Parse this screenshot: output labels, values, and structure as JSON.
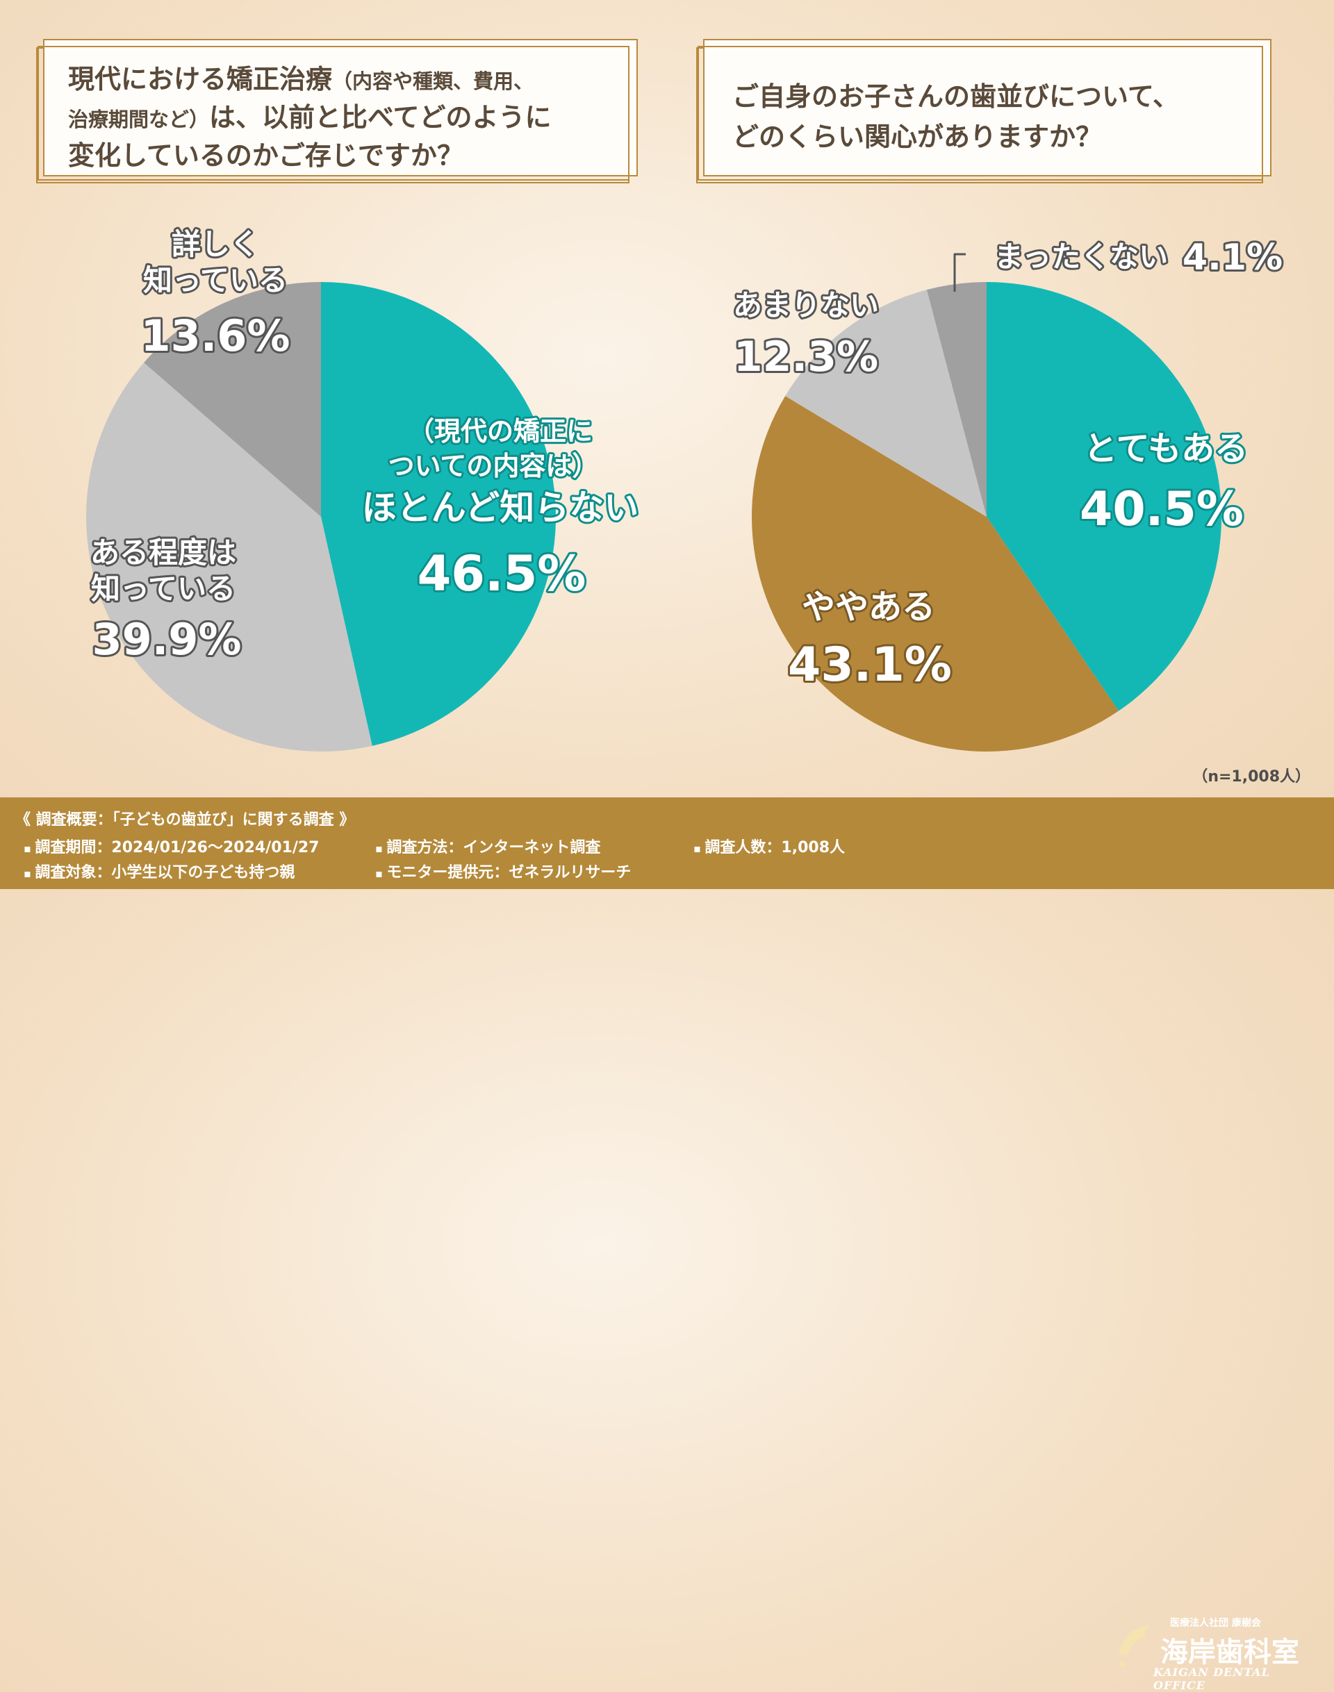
{
  "chart_data": [
    {
      "type": "pie",
      "title": "現代における矯正治療（内容や種類、費用、治療期間など）は、以前と比べてどのように変化しているのかご存じですか？",
      "slices": [
        {
          "label": "（現代の矯正についての内容は）ほとんど知らない",
          "value": 46.5,
          "color": "#13b8b5"
        },
        {
          "label": "ある程度は知っている",
          "value": 39.9,
          "color": "#c6c6c6"
        },
        {
          "label": "詳しく知っている",
          "value": 13.6,
          "color": "#a0a0a0"
        }
      ]
    },
    {
      "type": "pie",
      "title": "ご自身のお子さんの歯並びについて、どのくらい関心がありますか？",
      "slices": [
        {
          "label": "とてもある",
          "value": 40.5,
          "color": "#13b8b5"
        },
        {
          "label": "ややある",
          "value": 43.1,
          "color": "#b5873a"
        },
        {
          "label": "あまりない",
          "value": 12.3,
          "color": "#c6c6c6"
        },
        {
          "label": "まったくない",
          "value": 4.1,
          "color": "#a0a0a0"
        }
      ]
    }
  ],
  "q1": {
    "line1": "現代における矯正治療",
    "line1_small": "（内容や種類、費用、",
    "line2_small": "治療期間など）",
    "line2": "は、以前と比べてどのように",
    "line3": "変化しているのかご存じですか？"
  },
  "q2": {
    "line1": "ご自身のお子さんの歯並びについて、",
    "line2": "どのくらい関心がありますか？"
  },
  "labels": {
    "c1_s0_a": "（現代の矯正に",
    "c1_s0_b": "ついての内容は）",
    "c1_s0_c": "ほとんど知らない",
    "c1_s0_pct": "46.5%",
    "c1_s1_a": "ある程度は",
    "c1_s1_b": "知っている",
    "c1_s1_pct": "39.9%",
    "c1_s2_a": "詳しく",
    "c1_s2_b": "知っている",
    "c1_s2_pct": "13.6%",
    "c2_s0_a": "とてもある",
    "c2_s0_pct": "40.5%",
    "c2_s1_a": "ややある",
    "c2_s1_pct": "43.1%",
    "c2_s2_a": "あまりない",
    "c2_s2_pct": "12.3%",
    "c2_s3_a": "まったくない",
    "c2_s3_pct": "4.1%"
  },
  "n_label": "（n=1,008人）",
  "footer": {
    "title": "《 調査概要：「子どもの歯並び」に関する調査 》",
    "period": "調査期間：2024/01/26〜2024/01/27",
    "method": "調査方法：インターネット調査",
    "count": "調査人数：1,008人",
    "target": "調査対象：小学生以下の子ども持つ親",
    "provider": "モニター提供元：ゼネラルリサーチ"
  },
  "logo": {
    "org": "医療法人社団 康樹会",
    "name": "海岸歯科室",
    "en": "KAIGAN DENTAL OFFICE"
  }
}
